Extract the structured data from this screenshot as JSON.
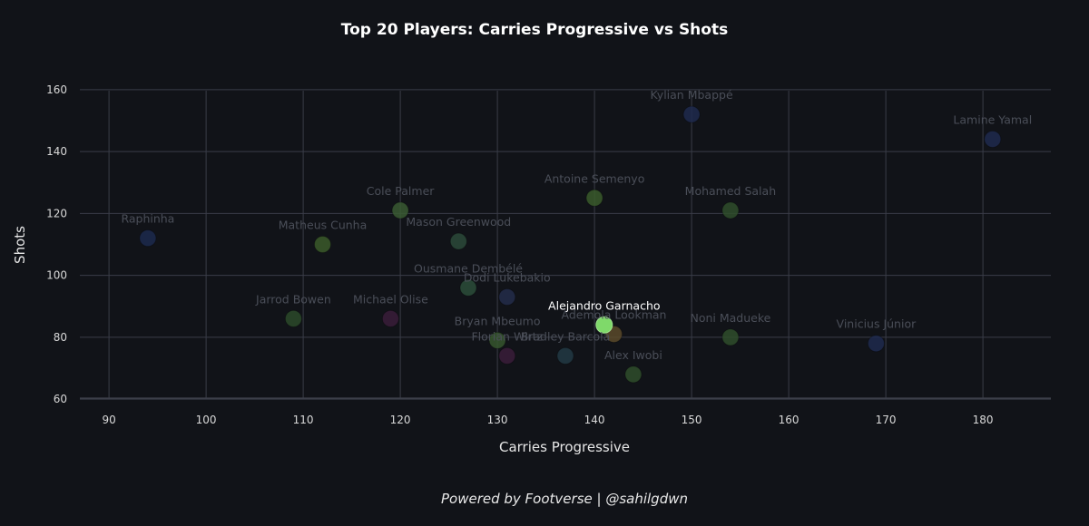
{
  "chart_data": {
    "type": "scatter",
    "title": "Top 20 Players: Carries Progressive vs Shots",
    "xlabel": "Carries Progressive",
    "ylabel": "Shots",
    "xlim": [
      87,
      187
    ],
    "ylim": [
      58,
      162
    ],
    "xticks": [
      90,
      100,
      110,
      120,
      130,
      140,
      150,
      160,
      170,
      180
    ],
    "yticks": [
      60,
      80,
      100,
      120,
      140,
      160
    ],
    "grid": true,
    "highlight": "Alejandro Garnacho",
    "points": [
      {
        "name": "Raphinha",
        "x": 94,
        "y": 112,
        "color": "#1c2a4e"
      },
      {
        "name": "Jarrod Bowen",
        "x": 109,
        "y": 86,
        "color": "#2c4a2a"
      },
      {
        "name": "Matheus Cunha",
        "x": 112,
        "y": 110,
        "color": "#3b5a2a"
      },
      {
        "name": "Michael Olise",
        "x": 119,
        "y": 86,
        "color": "#3a1d3a"
      },
      {
        "name": "Cole Palmer",
        "x": 120,
        "y": 121,
        "color": "#3a5a32"
      },
      {
        "name": "Mason Greenwood",
        "x": 126,
        "y": 111,
        "color": "#2c4a3a"
      },
      {
        "name": "Ousmane Dembélé",
        "x": 127,
        "y": 96,
        "color": "#2b4e3a"
      },
      {
        "name": "Bryan Mbeumo",
        "x": 130,
        "y": 79,
        "color": "#36562e"
      },
      {
        "name": "Florian Wirtz",
        "x": 131,
        "y": 74,
        "color": "#3a1d3a"
      },
      {
        "name": "Dodi Lukebakio",
        "x": 131,
        "y": 93,
        "color": "#232d4a"
      },
      {
        "name": "Bradley Barcola",
        "x": 137,
        "y": 74,
        "color": "#223a44"
      },
      {
        "name": "Antoine Semenyo",
        "x": 140,
        "y": 125,
        "color": "#3a5a2c"
      },
      {
        "name": "Ademola Lookman",
        "x": 142,
        "y": 81,
        "color": "#5a4a2a"
      },
      {
        "name": "Alejandro Garnacho",
        "x": 141,
        "y": 84,
        "color": "#7fd96a"
      },
      {
        "name": "Alex Iwobi",
        "x": 144,
        "y": 68,
        "color": "#2f4e2c"
      },
      {
        "name": "Kylian Mbappé",
        "x": 150,
        "y": 152,
        "color": "#1e2a4e"
      },
      {
        "name": "Mohamed Salah",
        "x": 154,
        "y": 121,
        "color": "#2f4e2c"
      },
      {
        "name": "Noni Madueke",
        "x": 154,
        "y": 80,
        "color": "#2f4e2c"
      },
      {
        "name": "Vinicius Júnior",
        "x": 169,
        "y": 78,
        "color": "#1e2a4e"
      },
      {
        "name": "Lamine Yamal",
        "x": 181,
        "y": 144,
        "color": "#1e2a4e"
      }
    ]
  },
  "footer": "Powered by Footverse | @sahilgdwn",
  "colors": {
    "background": "#111318",
    "grid": "#3a3d48",
    "dim_label": "#4a4e58",
    "highlight_label": "#ffffff"
  }
}
